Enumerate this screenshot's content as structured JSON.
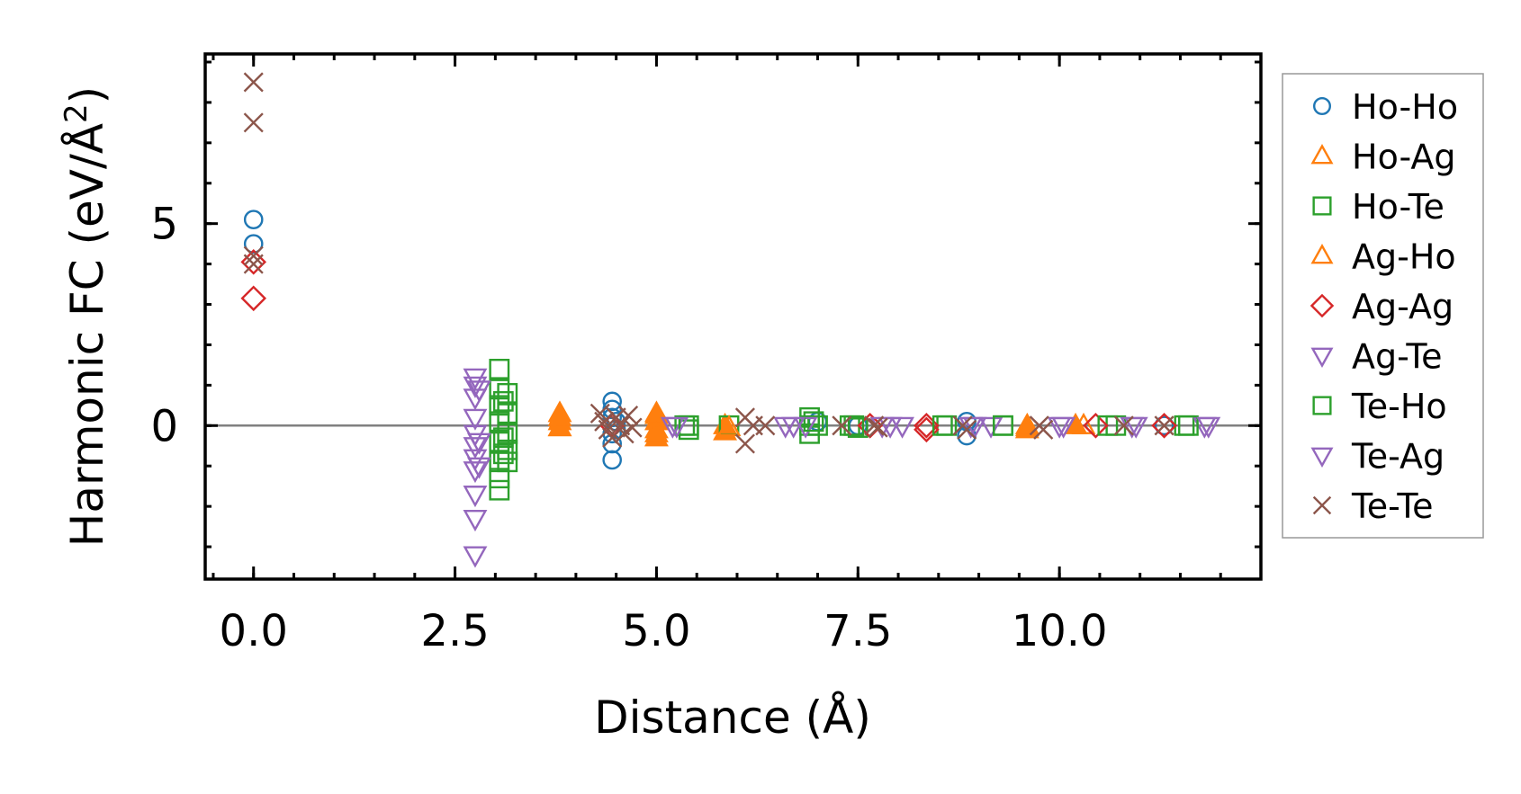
{
  "chart_data": {
    "type": "scatter",
    "xlabel": "Distance (Å)",
    "ylabel": "Harmonic FC (eV/Å",
    "ylabel_sup": "2",
    "ylabel_close": ")",
    "xlim": [
      -0.6,
      12.5
    ],
    "ylim": [
      -3.8,
      9.2
    ],
    "xticks": [
      0.0,
      2.5,
      5.0,
      7.5,
      10.0
    ],
    "xtick_labels": [
      "0.0",
      "2.5",
      "5.0",
      "7.5",
      "10.0"
    ],
    "yticks": [
      0,
      5
    ],
    "ytick_labels": [
      "0",
      "5"
    ],
    "x_minor_step": 0.5,
    "y_minor_step": 1,
    "zero_line": true,
    "legend_position": "outside-right",
    "series": [
      {
        "name": "Ho-Ho",
        "marker": "circle",
        "color": "#1f77b4",
        "points": [
          [
            0,
            5.1
          ],
          [
            0,
            4.5
          ],
          [
            4.45,
            0.6
          ],
          [
            4.45,
            0.4
          ],
          [
            4.45,
            0.2
          ],
          [
            4.45,
            -0.2
          ],
          [
            4.45,
            -0.45
          ],
          [
            4.45,
            -0.85
          ],
          [
            4.5,
            0.1
          ],
          [
            4.5,
            -0.1
          ],
          [
            7.0,
            0.1
          ],
          [
            7.5,
            0.0
          ],
          [
            8.85,
            -0.25
          ],
          [
            8.85,
            0.1
          ],
          [
            11.3,
            0.0
          ]
        ]
      },
      {
        "name": "Ho-Ag",
        "marker": "triangle-up-filled",
        "color": "#ff7f0e",
        "points": [
          [
            3.8,
            0.3
          ],
          [
            3.8,
            0.1
          ],
          [
            3.8,
            -0.05
          ],
          [
            5.0,
            0.3
          ],
          [
            5.0,
            0.1
          ],
          [
            5.0,
            -0.1
          ],
          [
            5.0,
            -0.3
          ],
          [
            5.85,
            0.0
          ],
          [
            5.85,
            -0.15
          ],
          [
            9.6,
            0.0
          ],
          [
            9.6,
            -0.1
          ],
          [
            10.2,
            0.0
          ]
        ]
      },
      {
        "name": "Ho-Te",
        "marker": "square",
        "color": "#2ca02c",
        "points": [
          [
            3.05,
            1.4
          ],
          [
            3.05,
            0.9
          ],
          [
            3.05,
            0.5
          ],
          [
            3.05,
            0.1
          ],
          [
            3.05,
            -0.4
          ],
          [
            3.05,
            -0.9
          ],
          [
            3.05,
            -1.3
          ],
          [
            3.05,
            -1.6
          ],
          [
            3.15,
            0.8
          ],
          [
            3.15,
            0.3
          ],
          [
            3.15,
            -0.2
          ],
          [
            3.15,
            -0.6
          ],
          [
            3.15,
            -0.9
          ],
          [
            5.35,
            0.0
          ],
          [
            5.4,
            -0.1
          ],
          [
            5.9,
            0.0
          ],
          [
            6.9,
            0.2
          ],
          [
            6.9,
            0.0
          ],
          [
            6.9,
            -0.2
          ],
          [
            7.0,
            0.0
          ],
          [
            7.4,
            0.0
          ],
          [
            7.5,
            -0.05
          ],
          [
            8.6,
            0.0
          ],
          [
            9.3,
            0.0
          ],
          [
            10.7,
            0.0
          ],
          [
            11.55,
            0.0
          ]
        ]
      },
      {
        "name": "Ag-Ho",
        "marker": "triangle-up",
        "color": "#ff7f0e",
        "points": [
          [
            3.8,
            0.2
          ],
          [
            3.8,
            -0.05
          ],
          [
            5.0,
            0.25
          ],
          [
            5.0,
            -0.2
          ],
          [
            5.9,
            -0.05
          ],
          [
            9.6,
            -0.05
          ],
          [
            10.3,
            0.0
          ]
        ]
      },
      {
        "name": "Ag-Ag",
        "marker": "diamond",
        "color": "#d62728",
        "points": [
          [
            0,
            4.05
          ],
          [
            0,
            3.15
          ],
          [
            4.45,
            0.0
          ],
          [
            7.65,
            0.0
          ],
          [
            8.35,
            0.0
          ],
          [
            8.35,
            -0.1
          ],
          [
            10.45,
            0.0
          ],
          [
            11.3,
            0.0
          ]
        ]
      },
      {
        "name": "Ag-Te",
        "marker": "triangle-down",
        "color": "#9467bd",
        "points": [
          [
            2.75,
            1.2
          ],
          [
            2.75,
            1.0
          ],
          [
            2.75,
            0.7
          ],
          [
            2.75,
            0.2
          ],
          [
            2.75,
            -0.2
          ],
          [
            2.75,
            -0.5
          ],
          [
            2.75,
            -0.8
          ],
          [
            2.75,
            -1.1
          ],
          [
            2.75,
            -1.7
          ],
          [
            2.75,
            -2.3
          ],
          [
            2.75,
            -3.2
          ],
          [
            5.2,
            0.0
          ],
          [
            6.6,
            0.0
          ],
          [
            6.85,
            0.0
          ],
          [
            7.8,
            0.0
          ],
          [
            8.05,
            0.0
          ],
          [
            8.9,
            0.0
          ],
          [
            9.15,
            0.0
          ],
          [
            10.05,
            0.0
          ],
          [
            10.9,
            0.0
          ],
          [
            11.8,
            0.0
          ]
        ]
      },
      {
        "name": "Te-Ho",
        "marker": "square",
        "color": "#2ca02c",
        "points": [
          [
            3.1,
            0.6
          ],
          [
            3.1,
            -0.3
          ],
          [
            3.1,
            -0.7
          ],
          [
            5.4,
            0.0
          ],
          [
            6.95,
            0.1
          ],
          [
            7.45,
            0.0
          ],
          [
            8.55,
            0.0
          ],
          [
            9.3,
            0.0
          ],
          [
            10.6,
            0.0
          ],
          [
            11.6,
            0.0
          ]
        ]
      },
      {
        "name": "Te-Ag",
        "marker": "triangle-down",
        "color": "#9467bd",
        "points": [
          [
            2.8,
            0.9
          ],
          [
            2.8,
            -0.4
          ],
          [
            2.8,
            -1.0
          ],
          [
            5.25,
            0.0
          ],
          [
            6.7,
            0.0
          ],
          [
            7.9,
            0.0
          ],
          [
            8.95,
            0.0
          ],
          [
            10.0,
            0.0
          ],
          [
            10.95,
            0.0
          ],
          [
            11.85,
            0.0
          ]
        ]
      },
      {
        "name": "Te-Te",
        "marker": "x",
        "color": "#8c564b",
        "points": [
          [
            0,
            8.5
          ],
          [
            0,
            7.5
          ],
          [
            0,
            4.2
          ],
          [
            0,
            4.0
          ],
          [
            4.3,
            0.3
          ],
          [
            4.35,
            0.1
          ],
          [
            4.4,
            -0.1
          ],
          [
            4.45,
            -0.3
          ],
          [
            4.5,
            0.2
          ],
          [
            4.55,
            0.0
          ],
          [
            4.6,
            -0.2
          ],
          [
            4.65,
            0.25
          ],
          [
            4.7,
            -0.05
          ],
          [
            6.1,
            0.2
          ],
          [
            6.1,
            -0.45
          ],
          [
            6.2,
            0.0
          ],
          [
            6.35,
            0.0
          ],
          [
            7.3,
            0.0
          ],
          [
            7.7,
            0.0
          ],
          [
            7.75,
            -0.05
          ],
          [
            8.8,
            0.0
          ],
          [
            8.85,
            -0.1
          ],
          [
            9.75,
            0.0
          ],
          [
            9.8,
            -0.1
          ],
          [
            10.8,
            0.0
          ],
          [
            11.3,
            0.0
          ]
        ]
      }
    ]
  },
  "colors": {
    "Ho-Ho": "#1f77b4",
    "Ho-Ag": "#ff7f0e",
    "Ho-Te": "#2ca02c",
    "Ag-Ho": "#ff7f0e",
    "Ag-Ag": "#d62728",
    "Ag-Te": "#9467bd",
    "Te-Ho": "#2ca02c",
    "Te-Ag": "#9467bd",
    "Te-Te": "#8c564b",
    "zero_line": "#808080",
    "legend_border": "#999999"
  }
}
